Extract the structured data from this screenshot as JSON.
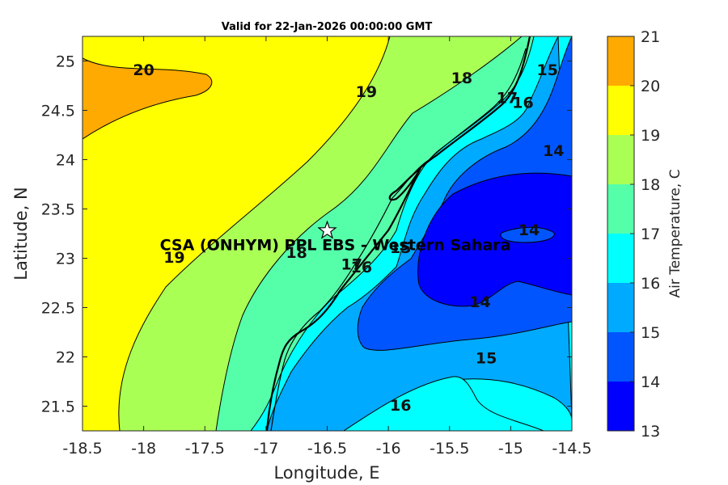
{
  "chart_data": {
    "type": "contour",
    "title": "Valid for 22-Jan-2026 00:00:00 GMT",
    "xlabel": "Longitude, E",
    "ylabel": "Latitude, N",
    "xlim": [
      -18.5,
      -14.5
    ],
    "ylim": [
      21.25,
      25.25
    ],
    "xticks": [
      "-18.5",
      "-18",
      "-17.5",
      "-17",
      "-16.5",
      "-16",
      "-15.5",
      "-15",
      "-14.5"
    ],
    "yticks": [
      "21.5",
      "22",
      "22.5",
      "23",
      "23.5",
      "24",
      "24.5",
      "25"
    ],
    "colorbar": {
      "label": "Air Temperature, C",
      "levels": [
        13,
        14,
        15,
        16,
        17,
        18,
        19,
        20,
        21
      ],
      "tick_labels": [
        "13",
        "14",
        "15",
        "16",
        "17",
        "18",
        "19",
        "20",
        "21"
      ],
      "colors": [
        "#0000ff",
        "#0055ff",
        "#00aaff",
        "#00ffff",
        "#55ffaa",
        "#aaff55",
        "#ffff00",
        "#ffaa00",
        "#ff5500"
      ]
    },
    "contour_labels": [
      {
        "text": "20",
        "x": -18.0,
        "y": 24.9
      },
      {
        "text": "19",
        "x": -16.18,
        "y": 24.68
      },
      {
        "text": "18",
        "x": -15.4,
        "y": 24.82
      },
      {
        "text": "17",
        "x": -15.03,
        "y": 24.62
      },
      {
        "text": "16",
        "x": -14.9,
        "y": 24.57
      },
      {
        "text": "15",
        "x": -14.7,
        "y": 24.9
      },
      {
        "text": "14",
        "x": -14.65,
        "y": 24.08
      },
      {
        "text": "14",
        "x": -14.85,
        "y": 23.28
      },
      {
        "text": "14",
        "x": -15.25,
        "y": 22.55
      },
      {
        "text": "15",
        "x": -15.2,
        "y": 21.98
      },
      {
        "text": "16",
        "x": -15.9,
        "y": 21.5
      },
      {
        "text": "19",
        "x": -17.75,
        "y": 23.0
      },
      {
        "text": "18",
        "x": -16.75,
        "y": 23.05
      },
      {
        "text": "17",
        "x": -16.3,
        "y": 22.93
      },
      {
        "text": "16",
        "x": -16.22,
        "y": 22.9
      },
      {
        "text": "15",
        "x": -15.9,
        "y": 23.1
      }
    ],
    "station": {
      "name": "CSA (ONHYM) PPL EBS - Western Sahara",
      "lon": -16.5,
      "lat": 23.28
    }
  }
}
